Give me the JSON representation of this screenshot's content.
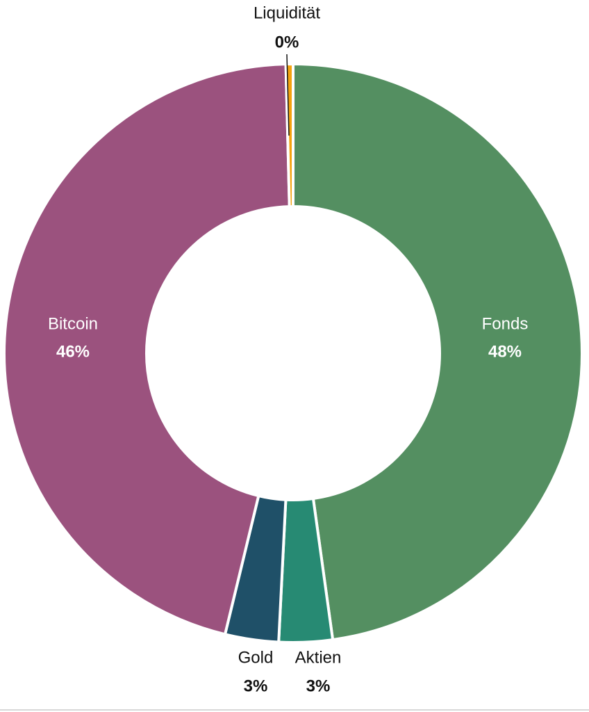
{
  "chart_data": {
    "type": "donut",
    "categories": [
      "Fonds",
      "Aktien",
      "Gold",
      "Bitcoin",
      "Liquidität"
    ],
    "values": [
      48,
      3,
      3,
      46,
      0.4
    ],
    "value_labels": [
      "48%",
      "3%",
      "3%",
      "46%",
      "0%"
    ],
    "colors": [
      "#548f61",
      "#278a73",
      "#1f5068",
      "#9b527e",
      "#f5a30f"
    ]
  }
}
